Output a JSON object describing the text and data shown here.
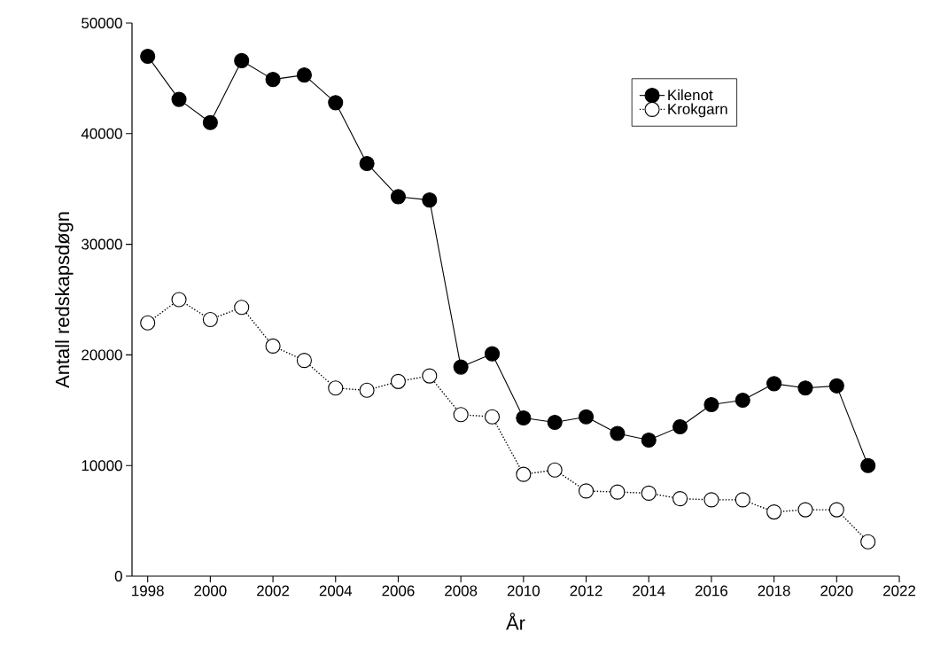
{
  "chart_data": {
    "type": "line",
    "xlabel": "År",
    "ylabel": "Antall redskapsdøgn",
    "x": [
      1998,
      1999,
      2000,
      2001,
      2002,
      2003,
      2004,
      2005,
      2006,
      2007,
      2008,
      2009,
      2010,
      2011,
      2012,
      2013,
      2014,
      2015,
      2016,
      2017,
      2018,
      2019,
      2020,
      2021
    ],
    "series": [
      {
        "name": "Kilenot",
        "color": "#000000",
        "marker": "circle",
        "line_style": "solid",
        "values": [
          47000,
          43100,
          41000,
          46600,
          44900,
          45300,
          42800,
          37300,
          34300,
          34000,
          18900,
          20100,
          14300,
          13900,
          14400,
          12900,
          12300,
          13500,
          15500,
          15900,
          17400,
          17000,
          17200,
          10000
        ]
      },
      {
        "name": "Krokgarn",
        "color": "#000000",
        "marker": "circle",
        "line_style": "dotted",
        "values": [
          22900,
          25000,
          23200,
          24300,
          20800,
          19500,
          17000,
          16800,
          17600,
          18100,
          14600,
          14400,
          9200,
          9600,
          7700,
          7600,
          7500,
          7000,
          6900,
          6900,
          5800,
          6000,
          6000,
          3100
        ]
      }
    ],
    "xlim": [
      1997.5,
      2022
    ],
    "ylim": [
      0,
      50000
    ],
    "xticks": [
      1998,
      2000,
      2002,
      2004,
      2006,
      2008,
      2010,
      2012,
      2014,
      2016,
      2018,
      2020,
      2022
    ],
    "yticks": [
      0,
      10000,
      20000,
      30000,
      40000,
      50000
    ],
    "grid": false,
    "legend": "top right"
  }
}
